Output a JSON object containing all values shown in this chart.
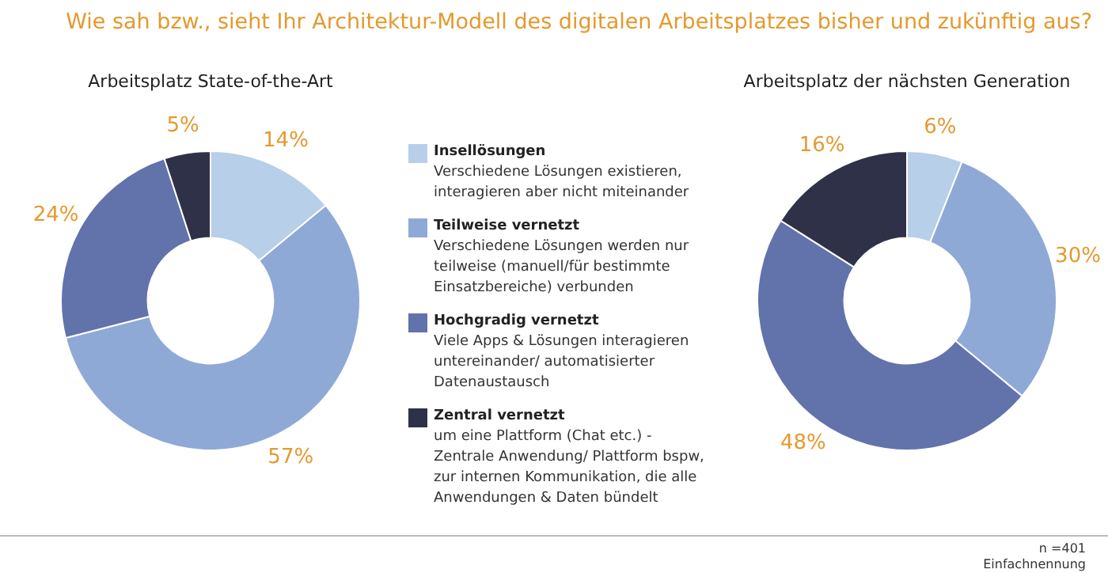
{
  "chart_data": [
    {
      "type": "donut",
      "title": "Wie sah bzw., sieht Ihr Architektur-Modell des digitalen Arbeitsplatzes bisher und zukünftig aus?",
      "subtitle": "Arbeitsplatz State-of-the-Art",
      "categories": [
        "Insellösungen",
        "Teilweise vernetzt",
        "Hochgradig vernetzt",
        "Zentral vernetzt"
      ],
      "values": [
        14,
        57,
        24,
        5
      ],
      "value_labels": [
        "14%",
        "57%",
        "24%",
        "5%"
      ],
      "colors": [
        "#b7cfe8",
        "#8fa9d6",
        "#6272aa",
        "#2f3148"
      ],
      "legend": "right",
      "annotations": [
        "Verschiedene Lösungen existieren, interagieren aber nicht miteinander",
        "Verschiedene Lösungen werden nur teilweise (manuell/für bestimmte Einsatzbereiche) verbunden",
        "Viele Apps & Lösungen interagieren untereinander/ automatisierter Datenaustausch",
        "um eine Plattform (Chat etc.) - Zentrale Anwendung/ Plattform bspw, zur internen Kommunikation, die alle Anwendungen & Daten bündelt"
      ]
    },
    {
      "type": "donut",
      "subtitle": "Arbeitsplatz der nächsten Generation",
      "values": [
        6,
        30,
        48,
        16
      ],
      "value_labels": [
        "6%",
        "30%",
        "48%",
        "16%"
      ],
      "colors": [
        "#b7cfe8",
        "#8fa9d6",
        "#6272aa",
        "#2f3148"
      ],
      "annotations": [
        "n =401",
        "Einfachnennung"
      ]
    }
  ]
}
